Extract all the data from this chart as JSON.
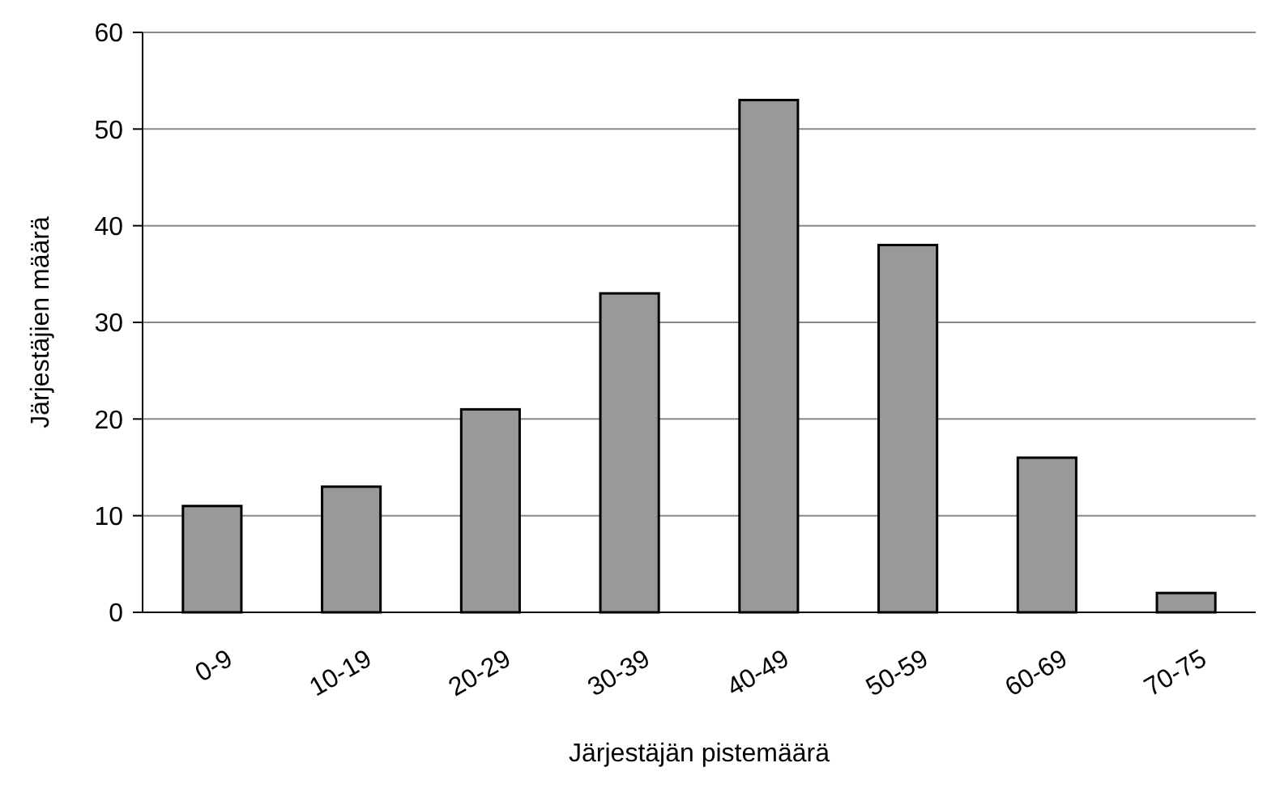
{
  "chart_data": {
    "type": "bar",
    "xlabel": "Järjestäjän pistemäärä",
    "ylabel": "Järjestäjien määrä",
    "categories": [
      "0-9",
      "10-19",
      "20-29",
      "30-39",
      "40-49",
      "50-59",
      "60-69",
      "70-75"
    ],
    "values": [
      11,
      13,
      21,
      33,
      53,
      38,
      16,
      2
    ],
    "color": "#999999",
    "ylim": [
      0,
      60
    ],
    "yticks": [
      0,
      10,
      20,
      30,
      40,
      50,
      60
    ],
    "grid": "y"
  }
}
